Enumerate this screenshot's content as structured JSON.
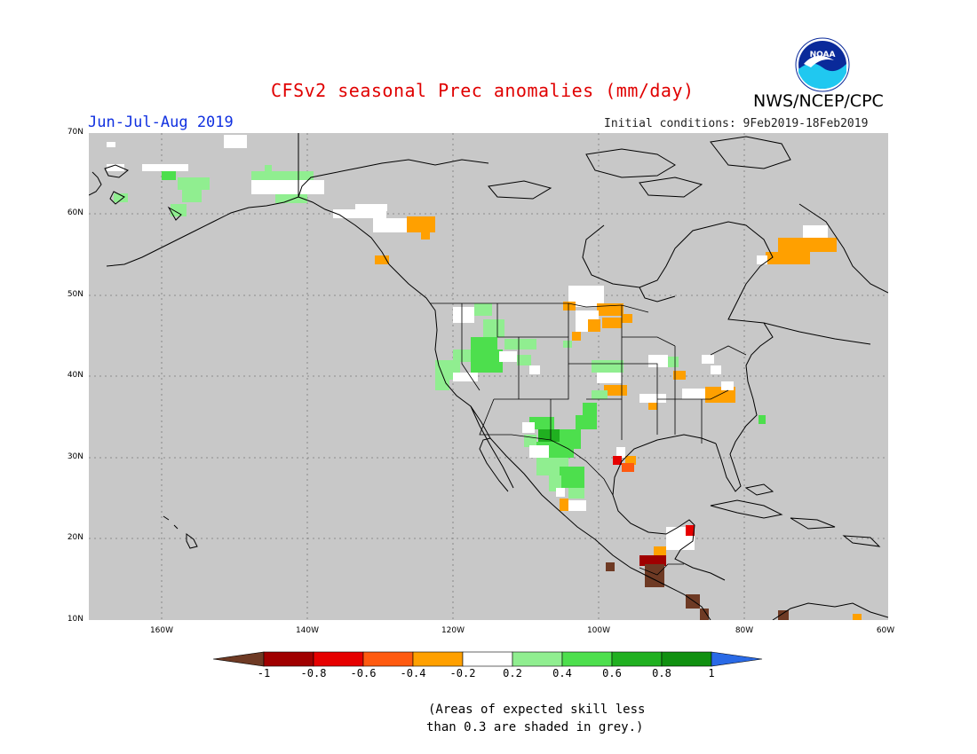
{
  "header": {
    "title": "CFSv2 seasonal Prec anomalies (mm/day)",
    "organization": "NWS/NCEP/CPC",
    "season": "Jun-Jul-Aug 2019",
    "initial_conditions": "Initial conditions: 9Feb2019-18Feb2019",
    "logo_text": "NOAA"
  },
  "map": {
    "background_color": "#c8c8c8",
    "lat_labels": [
      "70N",
      "60N",
      "50N",
      "40N",
      "30N",
      "20N",
      "10N"
    ],
    "lon_labels": [
      "160W",
      "140W",
      "120W",
      "100W",
      "80W",
      "60W"
    ]
  },
  "colorbar": {
    "tick_labels": [
      "-1",
      "-0.8",
      "-0.6",
      "-0.4",
      "-0.2",
      "0.2",
      "0.4",
      "0.6",
      "0.8",
      "1"
    ],
    "colors": [
      "#6e3a24",
      "#a00000",
      "#e60000",
      "#ff5a10",
      "#ffa000",
      "#ffffff",
      "#90ee90",
      "#4ddf4d",
      "#20b020",
      "#109010",
      "#2a6ae6"
    ]
  },
  "footnote": {
    "line1": "(Areas of expected skill less",
    "line2": "than 0.3 are shaded in grey.)"
  }
}
